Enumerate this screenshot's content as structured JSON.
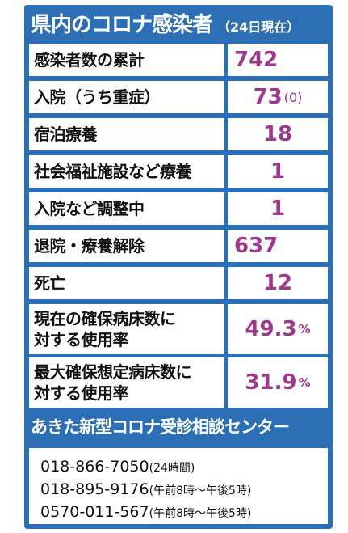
{
  "title": {
    "main": "県内のコロナ感染者",
    "sub": "（24日現在）"
  },
  "stats": [
    {
      "label": "感染者数の累計",
      "value": "742",
      "suffix": "",
      "paren": ""
    },
    {
      "label": "入院（うち重症）",
      "value": "73",
      "suffix": "",
      "paren": "(0)"
    },
    {
      "label": "宿泊療養",
      "value": "18",
      "suffix": "",
      "paren": ""
    },
    {
      "label": "社会福祉施設など療養",
      "value": "1",
      "suffix": "",
      "paren": ""
    },
    {
      "label": "入院など調整中",
      "value": "1",
      "suffix": "",
      "paren": ""
    },
    {
      "label": "退院・療養解除",
      "value": "637",
      "suffix": "",
      "paren": ""
    },
    {
      "label": "死亡",
      "value": "12",
      "suffix": "",
      "paren": ""
    },
    {
      "label_line1": "現在の確保病床数に",
      "label_line2": "対する使用率",
      "value": "49.3",
      "suffix": "%",
      "paren": ""
    },
    {
      "label_line1": "最大確保想定病床数に",
      "label_line2": "対する使用率",
      "value": "31.9",
      "suffix": "%",
      "paren": ""
    }
  ],
  "consult": {
    "title": "あきた新型コロナ受診相談センター"
  },
  "phones": [
    {
      "number": "018-866-7050",
      "hours": "(24時間)"
    },
    {
      "number": "018-895-9176",
      "hours": "(午前8時～午後5時)"
    },
    {
      "number": "0570-011-567",
      "hours": "(午前8時～午後5時)"
    }
  ],
  "colors": {
    "panel": "#2d6fb4",
    "value_text": "#9b3a8c"
  }
}
